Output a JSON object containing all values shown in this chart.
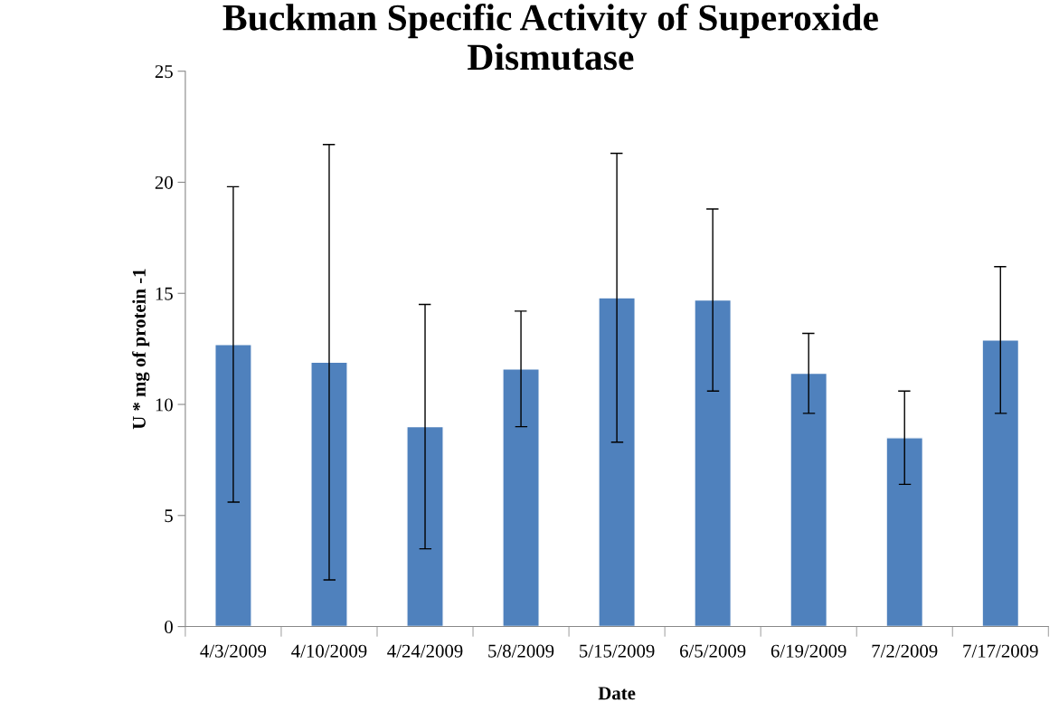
{
  "chart_data": {
    "type": "bar",
    "title": "Buckman Specific Activity of Superoxide\nDismutase",
    "xlabel": "Date",
    "ylabel": "U * mg of protein -1",
    "categories": [
      "4/3/2009",
      "4/10/2009",
      "4/24/2009",
      "5/8/2009",
      "5/15/2009",
      "6/5/2009",
      "6/19/2009",
      "7/2/2009",
      "7/17/2009"
    ],
    "values": [
      12.7,
      11.9,
      9.0,
      11.6,
      14.8,
      14.7,
      11.4,
      8.5,
      12.9
    ],
    "errors": [
      7.1,
      9.8,
      5.5,
      2.6,
      6.5,
      4.1,
      1.8,
      2.1,
      3.3
    ],
    "color": "#4f81bd",
    "ylim": [
      0,
      25
    ],
    "yticks": [
      0,
      5,
      10,
      15,
      20,
      25
    ],
    "grid": false,
    "legend": false
  }
}
